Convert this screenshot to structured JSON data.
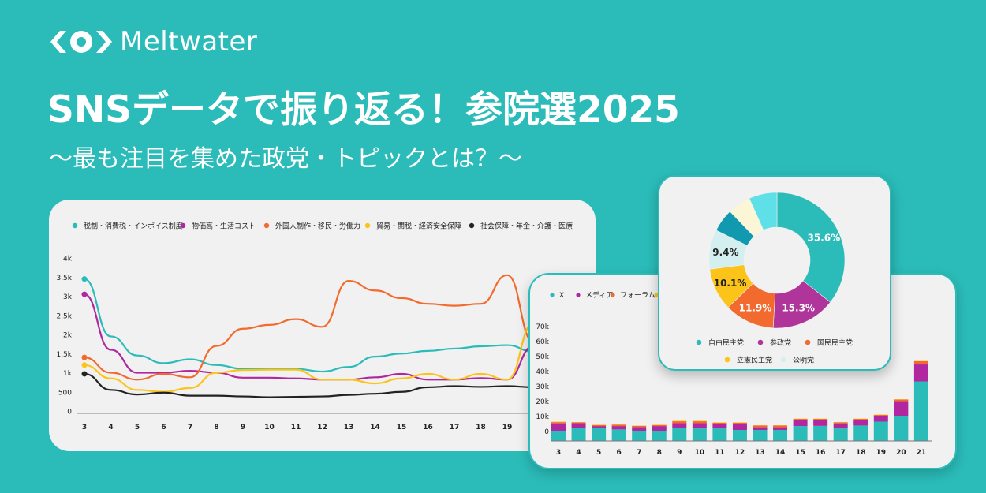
{
  "brand": {
    "name": "Meltwater",
    "logo_icon": "meltwater-eye-logo"
  },
  "header": {
    "title": "SNSデータで振り返る！参院選2025",
    "subtitle": "〜最も注目を集めた政党・トピックとは？〜"
  },
  "chart_data": [
    {
      "type": "line",
      "x": [
        3,
        4,
        5,
        6,
        7,
        8,
        9,
        10,
        11,
        12,
        13,
        14,
        15,
        16,
        17,
        18,
        19,
        20
      ],
      "x_ticks": [
        "3",
        "4",
        "5",
        "6",
        "7",
        "8",
        "9",
        "10",
        "11",
        "12",
        "13",
        "14",
        "15",
        "16",
        "17",
        "18",
        "19"
      ],
      "y_ticks": [
        "0",
        "500",
        "1k",
        "1.5k",
        "2k",
        "2.5k",
        "3k",
        "3.5k",
        "4k"
      ],
      "ylim": [
        0,
        4000
      ],
      "legend_position": "top",
      "series": [
        {
          "name": "税制・消費税・インボイス制度",
          "color": "#2bbcb9",
          "values": [
            3450,
            1950,
            1450,
            1250,
            1350,
            1200,
            1100,
            1100,
            1100,
            1030,
            1150,
            1420,
            1500,
            1570,
            1630,
            1690,
            1720,
            1550
          ]
        },
        {
          "name": "物価高・生活コスト",
          "color": "#b0279f",
          "values": [
            3050,
            1600,
            1000,
            1000,
            1050,
            1000,
            870,
            870,
            850,
            820,
            820,
            880,
            970,
            820,
            820,
            860,
            820,
            1700
          ]
        },
        {
          "name": "外国人制作・移民・労働力",
          "color": "#f26a2e",
          "values": [
            1400,
            1000,
            820,
            970,
            880,
            1700,
            2150,
            2250,
            2400,
            2200,
            3400,
            3150,
            2950,
            2800,
            2750,
            2800,
            3550,
            1800
          ]
        },
        {
          "name": "貿易・関税・経済安全保障",
          "color": "#fcc419",
          "values": [
            1200,
            850,
            550,
            500,
            600,
            1000,
            1070,
            1080,
            1080,
            820,
            820,
            720,
            850,
            970,
            820,
            970,
            820,
            2300
          ]
        },
        {
          "name": "社会保障・年金・介護・医療",
          "color": "#222222",
          "values": [
            970,
            550,
            430,
            480,
            400,
            400,
            380,
            360,
            370,
            380,
            420,
            450,
            500,
            620,
            650,
            630,
            650,
            620
          ]
        }
      ]
    },
    {
      "type": "bar",
      "stacked": true,
      "categories": [
        "3",
        "4",
        "5",
        "6",
        "7",
        "8",
        "9",
        "10",
        "11",
        "12",
        "13",
        "14",
        "15",
        "16",
        "17",
        "18",
        "19",
        "20",
        "21"
      ],
      "y_ticks": [
        "0",
        "10k",
        "20k",
        "30k",
        "40k",
        "50k",
        "60k",
        "70k"
      ],
      "ylim": [
        0,
        70000
      ],
      "legend_position": "top-left",
      "series": [
        {
          "name": "X",
          "color": "#2bbcb9",
          "values": [
            5600,
            7700,
            7700,
            6800,
            5600,
            5600,
            7700,
            7400,
            7400,
            6500,
            6500,
            6500,
            8800,
            8900,
            7400,
            9100,
            11400,
            14600,
            35100
          ]
        },
        {
          "name": "メディア",
          "color": "#b0279f",
          "values": [
            4800,
            2800,
            1100,
            2000,
            2600,
            3200,
            2800,
            3100,
            2600,
            3500,
            1600,
            1600,
            3300,
            3200,
            3000,
            3000,
            3300,
            8400,
            10000
          ]
        },
        {
          "name": "フォーラム",
          "color": "#f26a2e",
          "values": [
            700,
            500,
            600,
            800,
            700,
            600,
            1100,
            1100,
            800,
            800,
            1000,
            1000,
            900,
            900,
            600,
            900,
            700,
            1400,
            1900
          ]
        },
        {
          "name": "",
          "color": "#fcc419",
          "values": [
            300,
            200,
            200,
            200,
            200,
            200,
            300,
            300,
            200,
            200,
            200,
            200,
            200,
            200,
            200,
            200,
            200,
            200,
            200
          ]
        }
      ]
    },
    {
      "type": "pie",
      "donut": true,
      "legend_position": "bottom",
      "slices": [
        {
          "name": "自由民主党",
          "value": 35.6,
          "label": "35.6%",
          "color": "#2bbcb9"
        },
        {
          "name": "参政党",
          "value": 15.3,
          "label": "15.3%",
          "color": "#b0359a"
        },
        {
          "name": "国民民主党",
          "value": 11.9,
          "label": "11.9%",
          "color": "#f26a2e"
        },
        {
          "name": "立憲民主党",
          "value": 10.1,
          "label": "10.1%",
          "color": "#fcc419"
        },
        {
          "name": "公明党",
          "value": 9.4,
          "label": "9.4%",
          "color": "#d3eff0"
        },
        {
          "name": "",
          "value": 5.5,
          "label": "",
          "color": "#1199b0"
        },
        {
          "name": "",
          "value": 5.5,
          "label": "",
          "color": "#fbf7d6"
        },
        {
          "name": "",
          "value": 6.7,
          "label": "",
          "color": "#5fe0e8"
        }
      ]
    }
  ]
}
